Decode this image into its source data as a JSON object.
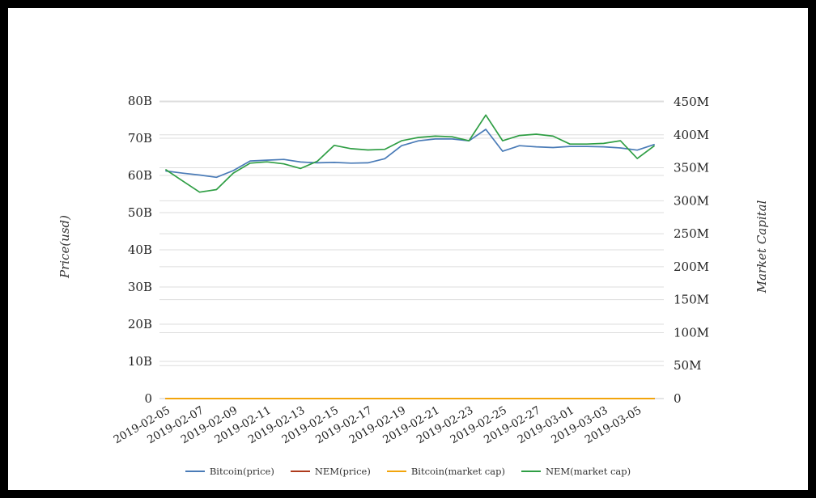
{
  "chart_data": {
    "type": "line",
    "title": "",
    "grid": true,
    "legend_position": "bottom",
    "x": [
      "2019-02-05",
      "2019-02-06",
      "2019-02-07",
      "2019-02-08",
      "2019-02-09",
      "2019-02-10",
      "2019-02-11",
      "2019-02-12",
      "2019-02-13",
      "2019-02-14",
      "2019-02-15",
      "2019-02-16",
      "2019-02-17",
      "2019-02-18",
      "2019-02-19",
      "2019-02-20",
      "2019-02-21",
      "2019-02-22",
      "2019-02-23",
      "2019-02-24",
      "2019-02-25",
      "2019-02-26",
      "2019-02-27",
      "2019-02-28",
      "2019-03-01",
      "2019-03-02",
      "2019-03-03",
      "2019-03-04",
      "2019-03-05",
      "2019-03-06"
    ],
    "x_tick_every": 2,
    "left_axis": {
      "label": "Price(usd)",
      "tick_values": [
        0,
        10,
        20,
        30,
        40,
        50,
        60,
        70,
        80
      ],
      "tick_labels": [
        "0",
        "10B",
        "20B",
        "30B",
        "40B",
        "50B",
        "60B",
        "70B",
        "80B"
      ],
      "max": 80
    },
    "right_axis": {
      "label": "Market Capital",
      "tick_values": [
        0,
        50,
        100,
        150,
        200,
        250,
        300,
        350,
        400,
        450
      ],
      "tick_labels": [
        "0",
        "50M",
        "100M",
        "150M",
        "200M",
        "250M",
        "300M",
        "350M",
        "400M",
        "450M"
      ],
      "max": 450
    },
    "series": [
      {
        "name": "Bitcoin(price)",
        "color": "#4a7bb7",
        "axis": "left",
        "values": [
          61.2,
          60.6,
          60.1,
          59.5,
          61.3,
          63.9,
          64.1,
          64.3,
          63.6,
          63.4,
          63.5,
          63.3,
          63.4,
          64.5,
          68.0,
          69.3,
          69.8,
          69.8,
          69.3,
          72.4,
          66.5,
          68.0,
          67.7,
          67.5,
          67.8,
          67.8,
          67.7,
          67.4,
          66.8,
          68.3
        ]
      },
      {
        "name": "NEM(price)",
        "color": "#ae3a1c",
        "axis": "left",
        "values": [
          0,
          0,
          0,
          0,
          0,
          0,
          0,
          0,
          0,
          0,
          0,
          0,
          0,
          0,
          0,
          0,
          0,
          0,
          0,
          0,
          0,
          0,
          0,
          0,
          0,
          0,
          0,
          0,
          0,
          0
        ]
      },
      {
        "name": "Bitcoin(market cap)",
        "color": "#f2a50c",
        "axis": "right",
        "values": [
          0,
          0,
          0,
          0,
          0,
          0,
          0,
          0,
          0,
          0,
          0,
          0,
          0,
          0,
          0,
          0,
          0,
          0,
          0,
          0,
          0,
          0,
          0,
          0,
          0,
          0,
          0,
          0,
          0,
          0
        ]
      },
      {
        "name": "NEM(market cap)",
        "color": "#2f9e44",
        "axis": "right",
        "values": [
          347,
          330,
          313,
          317,
          342,
          357,
          359,
          356,
          349,
          360,
          384,
          379,
          377,
          378,
          391,
          396,
          398,
          397,
          391,
          430,
          391,
          399,
          401,
          398,
          386,
          386,
          387,
          391,
          364,
          383
        ]
      }
    ]
  }
}
